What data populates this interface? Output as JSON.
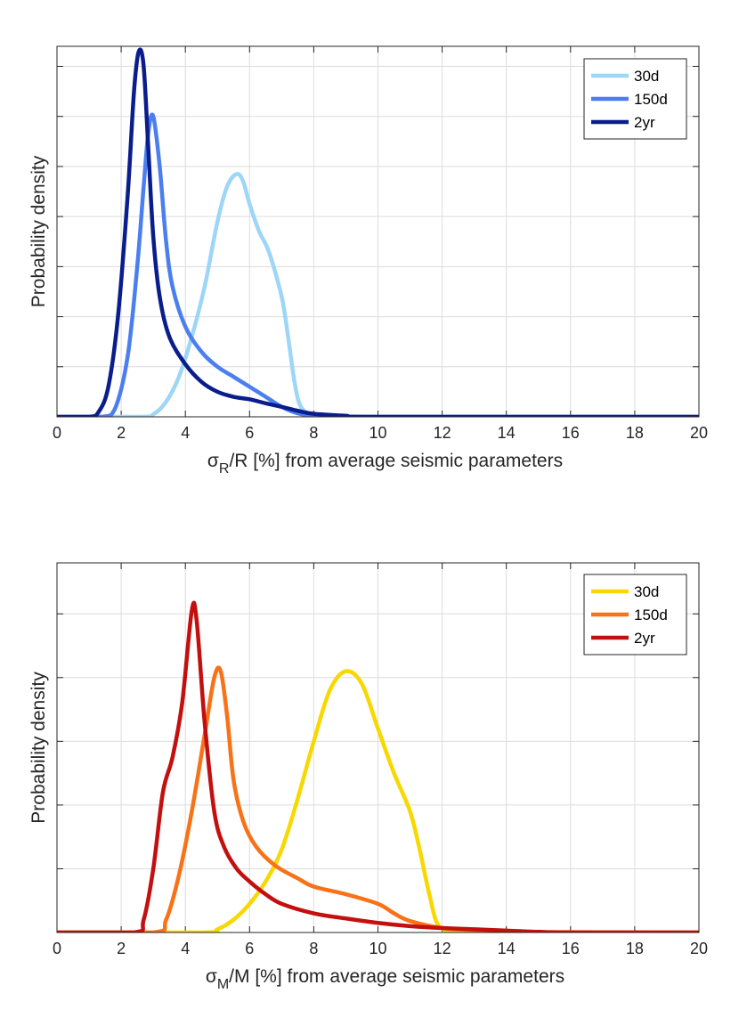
{
  "chart_data": [
    {
      "type": "line",
      "id": "radius",
      "xlabel_main": "σ",
      "xlabel_sub": "R",
      "xlabel_rest": "/R [%] from average seismic parameters",
      "ylabel": "Probability density",
      "xlim": [
        0,
        20
      ],
      "ylim": [
        0,
        7.4
      ],
      "x_ticks": [
        "0",
        "2",
        "4",
        "6",
        "8",
        "10",
        "12",
        "14",
        "16",
        "18",
        "20"
      ],
      "y_grid": [
        1,
        2,
        3,
        4,
        5,
        6,
        7
      ],
      "legend": "top-right",
      "series": [
        {
          "name": "30d",
          "color": "#9dd6f6",
          "x": [
            0,
            2.6,
            3.0,
            3.4,
            3.8,
            4.2,
            4.6,
            5.0,
            5.3,
            5.6,
            5.8,
            6.0,
            6.3,
            6.6,
            7.0,
            7.2,
            7.4,
            7.6,
            8.0,
            9,
            10,
            20
          ],
          "y": [
            0,
            0,
            0.05,
            0.3,
            0.8,
            1.6,
            2.6,
            3.9,
            4.6,
            4.85,
            4.7,
            4.25,
            3.7,
            3.3,
            2.4,
            1.6,
            0.7,
            0.2,
            0.05,
            0.01,
            0,
            0
          ]
        },
        {
          "name": "150d",
          "color": "#4b7ff0",
          "x": [
            0,
            1.4,
            1.8,
            2.2,
            2.5,
            2.7,
            2.85,
            3.0,
            3.2,
            3.4,
            3.6,
            4.0,
            4.5,
            5.0,
            5.5,
            6.0,
            6.5,
            7.0,
            7.5,
            8.0,
            9,
            10,
            20
          ],
          "y": [
            0,
            0,
            0.15,
            1.2,
            3.0,
            4.6,
            5.7,
            6.0,
            5.0,
            3.5,
            2.6,
            1.8,
            1.3,
            1.0,
            0.8,
            0.6,
            0.4,
            0.2,
            0.07,
            0.03,
            0.01,
            0,
            0
          ]
        },
        {
          "name": "2yr",
          "color": "#0a1d8c",
          "x": [
            0,
            1.0,
            1.3,
            1.6,
            1.9,
            2.2,
            2.4,
            2.55,
            2.7,
            2.85,
            3.0,
            3.2,
            3.5,
            4.0,
            4.5,
            5.0,
            5.5,
            6.0,
            6.5,
            7.0,
            7.5,
            8.0,
            9,
            10,
            20
          ],
          "y": [
            0,
            0,
            0.1,
            0.6,
            2.0,
            4.4,
            6.5,
            7.3,
            7.0,
            5.3,
            3.6,
            2.4,
            1.6,
            1.05,
            0.7,
            0.5,
            0.4,
            0.35,
            0.27,
            0.2,
            0.12,
            0.06,
            0.02,
            0,
            0
          ]
        }
      ]
    },
    {
      "type": "line",
      "id": "mass",
      "xlabel_main": "σ",
      "xlabel_sub": "M",
      "xlabel_rest": "/M [%] from average seismic parameters",
      "ylabel": "Probability density",
      "xlim": [
        0,
        20
      ],
      "ylim": [
        0,
        5.8
      ],
      "x_ticks": [
        "0",
        "2",
        "4",
        "6",
        "8",
        "10",
        "12",
        "14",
        "16",
        "18",
        "20"
      ],
      "y_grid": [
        1,
        2,
        3,
        4,
        5
      ],
      "legend": "top-right",
      "series": [
        {
          "name": "30d",
          "color": "#f8d800",
          "x": [
            0,
            4.5,
            5.0,
            5.5,
            6.0,
            6.5,
            7.0,
            7.5,
            8.0,
            8.5,
            9.0,
            9.5,
            10.0,
            10.5,
            11.0,
            11.3,
            11.6,
            11.9,
            12.5,
            13.5,
            20
          ],
          "y": [
            0,
            0,
            0.05,
            0.2,
            0.45,
            0.8,
            1.3,
            2.1,
            3.0,
            3.8,
            4.1,
            3.9,
            3.2,
            2.5,
            1.9,
            1.3,
            0.6,
            0.1,
            0.03,
            0,
            0
          ]
        },
        {
          "name": "150d",
          "color": "#f87217",
          "x": [
            0,
            3.0,
            3.4,
            3.8,
            4.2,
            4.6,
            4.9,
            5.1,
            5.3,
            5.5,
            5.8,
            6.2,
            6.8,
            7.5,
            8.0,
            9.0,
            10.0,
            10.5,
            11.0,
            12.0,
            13.0,
            14.0,
            20
          ],
          "y": [
            0,
            0,
            0.2,
            0.9,
            1.9,
            3.1,
            4.0,
            4.1,
            3.4,
            2.4,
            1.75,
            1.35,
            1.05,
            0.85,
            0.72,
            0.6,
            0.45,
            0.3,
            0.18,
            0.07,
            0.04,
            0.01,
            0
          ]
        },
        {
          "name": "2yr",
          "color": "#c40f0f",
          "x": [
            0,
            2.4,
            2.7,
            3.0,
            3.3,
            3.6,
            3.9,
            4.2,
            4.35,
            4.6,
            4.9,
            5.2,
            5.6,
            6.0,
            6.5,
            7.0,
            8.0,
            9.0,
            10.0,
            11.0,
            12.0,
            13.0,
            14.0,
            15,
            16,
            20
          ],
          "y": [
            0,
            0,
            0.2,
            1.0,
            2.2,
            2.75,
            3.6,
            5.05,
            4.9,
            3.3,
            1.9,
            1.35,
            1.0,
            0.8,
            0.6,
            0.45,
            0.3,
            0.22,
            0.15,
            0.1,
            0.07,
            0.05,
            0.03,
            0.01,
            0,
            0
          ]
        }
      ]
    }
  ]
}
